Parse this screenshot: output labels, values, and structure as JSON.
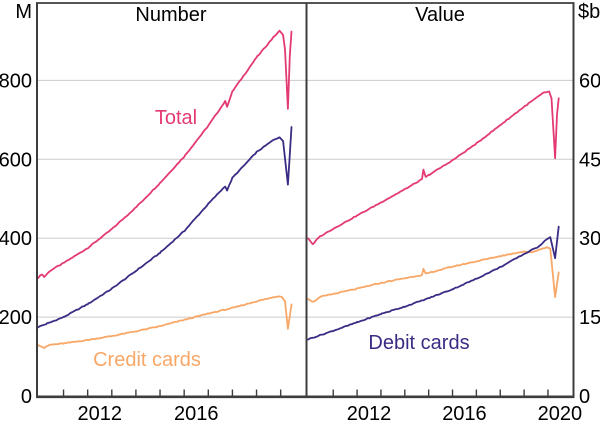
{
  "page": {
    "background": "#ffffff",
    "grid_color": "#cbcbcb",
    "axis_color": "#3d3d3d",
    "text_color": "#000000"
  },
  "chart_data": {
    "type": "line",
    "layout": "two-panel",
    "x_range": [
      2009.9,
      2021.05
    ],
    "x_ticks_years": [
      2011,
      2012,
      2013,
      2014,
      2015,
      2016,
      2017,
      2018,
      2019,
      2020
    ],
    "panels": [
      {
        "title": "Number",
        "unit_label": "M",
        "axis_side": "left",
        "ylim": [
          0,
          1000
        ],
        "yticks": [
          0,
          200,
          400,
          600,
          800
        ],
        "x_year_labels": [
          2012,
          2016
        ],
        "series": [
          {
            "name": "Total",
            "color": "#e33a72",
            "points": [
              [
                2009.95,
                300
              ],
              [
                2010.1,
                309
              ],
              [
                2010.2,
                302
              ],
              [
                2010.45,
                318
              ],
              [
                2011,
                337
              ],
              [
                2012,
                375
              ],
              [
                2013,
                423
              ],
              [
                2014,
                478
              ],
              [
                2015,
                540
              ],
              [
                2016,
                607
              ],
              [
                2017,
                685
              ],
              [
                2017.7,
                747
              ],
              [
                2017.78,
                734
              ],
              [
                2018,
                772
              ],
              [
                2019,
                858
              ],
              [
                2019.6,
                902
              ],
              [
                2019.95,
                926
              ],
              [
                2020.1,
                915
              ],
              [
                2020.18,
                878
              ],
              [
                2020.3,
                728
              ],
              [
                2020.38,
                862
              ],
              [
                2020.45,
                924
              ]
            ]
          },
          {
            "name": "Debit cards",
            "color": "#3c2b84",
            "points": [
              [
                2009.95,
                175
              ],
              [
                2010.3,
                183
              ],
              [
                2011,
                200
              ],
              [
                2012,
                233
              ],
              [
                2013,
                272
              ],
              [
                2014,
                317
              ],
              [
                2015,
                363
              ],
              [
                2016,
                418
              ],
              [
                2017,
                487
              ],
              [
                2017.7,
                532
              ],
              [
                2017.78,
                521
              ],
              [
                2018,
                553
              ],
              [
                2019,
                618
              ],
              [
                2019.7,
                649
              ],
              [
                2019.95,
                656
              ],
              [
                2020.1,
                646
              ],
              [
                2020.3,
                536
              ],
              [
                2020.38,
                612
              ],
              [
                2020.45,
                682
              ]
            ]
          },
          {
            "name": "Credit cards",
            "color": "#f8a766",
            "points": [
              [
                2009.95,
                130
              ],
              [
                2010.2,
                122
              ],
              [
                2010.45,
                130
              ],
              [
                2011,
                133
              ],
              [
                2012,
                142
              ],
              [
                2013,
                152
              ],
              [
                2014,
                164
              ],
              [
                2015,
                177
              ],
              [
                2016,
                193
              ],
              [
                2017,
                209
              ],
              [
                2018,
                223
              ],
              [
                2019,
                240
              ],
              [
                2019.9,
                253
              ],
              [
                2020.05,
                251
              ],
              [
                2020.18,
                240
              ],
              [
                2020.3,
                170
              ],
              [
                2020.45,
                232
              ]
            ]
          }
        ]
      },
      {
        "title": "Value",
        "unit_label": "$b",
        "axis_side": "right",
        "ylim": [
          0,
          75
        ],
        "yticks": [
          0,
          15,
          30,
          45,
          60
        ],
        "x_year_labels": [
          2012,
          2016,
          2020
        ],
        "series": [
          {
            "name": "Total",
            "color": "#e33a72",
            "points": [
              [
                2009.95,
                30
              ],
              [
                2010.15,
                28.8
              ],
              [
                2010.4,
                30.2
              ],
              [
                2011,
                31.8
              ],
              [
                2012,
                34.3
              ],
              [
                2013,
                36.8
              ],
              [
                2014,
                39.3
              ],
              [
                2014.72,
                41.2
              ],
              [
                2014.78,
                43
              ],
              [
                2014.88,
                41.6
              ],
              [
                2015,
                42
              ],
              [
                2016,
                44.8
              ],
              [
                2017,
                48
              ],
              [
                2018,
                51.5
              ],
              [
                2019,
                55
              ],
              [
                2019.8,
                57.6
              ],
              [
                2020.05,
                57.9
              ],
              [
                2020.15,
                56.6
              ],
              [
                2020.3,
                45.2
              ],
              [
                2020.38,
                53.5
              ],
              [
                2020.45,
                56.6
              ]
            ]
          },
          {
            "name": "Debit cards",
            "color": "#3c2b84",
            "points": [
              [
                2009.95,
                10.8
              ],
              [
                2011,
                12.4
              ],
              [
                2012,
                14
              ],
              [
                2013,
                15.6
              ],
              [
                2014,
                17
              ],
              [
                2015,
                18.6
              ],
              [
                2016,
                20.3
              ],
              [
                2017,
                22.3
              ],
              [
                2018,
                24.5
              ],
              [
                2019,
                27
              ],
              [
                2019.6,
                28.4
              ],
              [
                2019.95,
                29.8
              ],
              [
                2020.1,
                30.2
              ],
              [
                2020.3,
                26.2
              ],
              [
                2020.45,
                32.2
              ]
            ]
          },
          {
            "name": "Credit cards",
            "color": "#f8a766",
            "points": [
              [
                2009.95,
                18.5
              ],
              [
                2010.15,
                17.9
              ],
              [
                2010.5,
                18.9
              ],
              [
                2011,
                19.4
              ],
              [
                2012,
                20.4
              ],
              [
                2013,
                21.5
              ],
              [
                2014,
                22.4
              ],
              [
                2014.72,
                23
              ],
              [
                2014.78,
                24.1
              ],
              [
                2014.88,
                23.2
              ],
              [
                2015,
                23.4
              ],
              [
                2016,
                24.6
              ],
              [
                2017,
                25.6
              ],
              [
                2018,
                26.6
              ],
              [
                2019,
                27.5
              ],
              [
                2019.3,
                27.3
              ],
              [
                2019.95,
                28.3
              ],
              [
                2020.1,
                28
              ],
              [
                2020.3,
                18.8
              ],
              [
                2020.45,
                23.5
              ]
            ]
          }
        ]
      }
    ]
  }
}
